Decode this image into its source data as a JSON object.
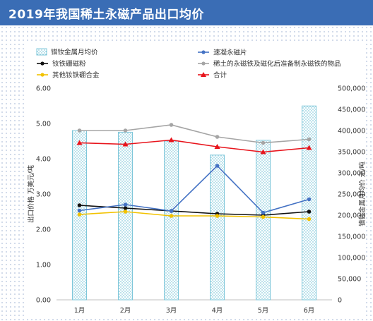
{
  "title": "2019年我国稀土永磁产品出口均价",
  "chart_data": {
    "type": "bar+line",
    "categories": [
      "1月",
      "2月",
      "3月",
      "4月",
      "5月",
      "6月"
    ],
    "bar_series": {
      "name": "镨钕金属月均价",
      "axis": "right",
      "values": [
        400000,
        396000,
        375000,
        342000,
        377000,
        458000
      ],
      "color": "#8fd0e0"
    },
    "line_series": [
      {
        "name": "速凝永磁片",
        "values": [
          2.53,
          2.7,
          2.52,
          3.8,
          2.47,
          2.85
        ],
        "color": "#4472c4"
      },
      {
        "name": "钕铁硼磁粉",
        "values": [
          2.68,
          2.6,
          2.52,
          2.44,
          2.4,
          2.5
        ],
        "color": "#111111"
      },
      {
        "name": "稀土的永磁铁及磁化后准备制永磁铁的物品",
        "values": [
          4.8,
          4.8,
          4.96,
          4.62,
          4.45,
          4.55
        ],
        "color": "#a5a5a5"
      },
      {
        "name": "其他钕铁硼合金",
        "values": [
          2.42,
          2.5,
          2.38,
          2.38,
          2.35,
          2.29
        ],
        "color": "#f2c200"
      },
      {
        "name": "合计",
        "values": [
          4.45,
          4.41,
          4.53,
          4.34,
          4.19,
          4.31
        ],
        "color": "#e8141c"
      }
    ],
    "y_left": {
      "label": "出口价格 万美元/吨",
      "range": [
        0,
        6
      ],
      "ticks": [
        "0.00",
        "1.00",
        "2.00",
        "3.00",
        "4.00",
        "5.00",
        "6.00"
      ]
    },
    "y_right": {
      "label": "镨钕金属月均价 元/吨",
      "range": [
        0,
        500000
      ],
      "ticks": [
        "0",
        "50,000",
        "100,000",
        "150,000",
        "200,000",
        "250,000",
        "300,000",
        "350,000",
        "400,000",
        "450,000",
        "500,000"
      ]
    },
    "grid": false,
    "legend_position": "top"
  }
}
